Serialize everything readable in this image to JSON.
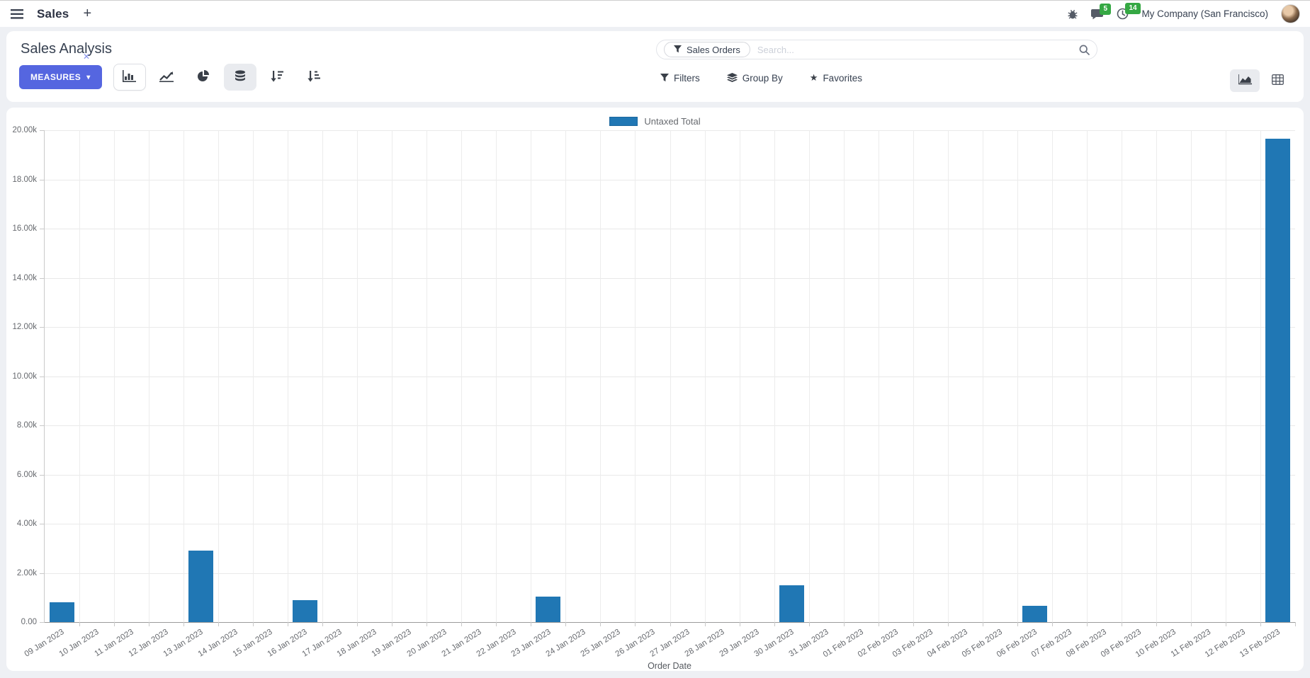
{
  "navbar": {
    "app_name": "Sales",
    "plus_label": "+",
    "messages_badge": "5",
    "activities_badge": "14",
    "company": "My Company (San Francisco)"
  },
  "control_panel": {
    "title": "Sales Analysis",
    "measures_label": "MEASURES",
    "measures_caret": "▾",
    "search": {
      "facet_label": "Sales Orders",
      "facet_remove": "✕",
      "placeholder": "Search..."
    },
    "filters_label": "Filters",
    "group_by_label": "Group By",
    "favorites_label": "Favorites",
    "favorites_star": "★"
  },
  "chart_data": {
    "type": "bar",
    "title": "",
    "legend_position": "top",
    "series_color": "#2077b4",
    "xlabel": "Order Date",
    "ylabel": "",
    "ylim": [
      0,
      20000
    ],
    "grid": true,
    "y_ticks": [
      {
        "value": 0,
        "label": "0.00"
      },
      {
        "value": 2000,
        "label": "2.00k"
      },
      {
        "value": 4000,
        "label": "4.00k"
      },
      {
        "value": 6000,
        "label": "6.00k"
      },
      {
        "value": 8000,
        "label": "8.00k"
      },
      {
        "value": 10000,
        "label": "10.00k"
      },
      {
        "value": 12000,
        "label": "12.00k"
      },
      {
        "value": 14000,
        "label": "14.00k"
      },
      {
        "value": 16000,
        "label": "16.00k"
      },
      {
        "value": 18000,
        "label": "18.00k"
      },
      {
        "value": 20000,
        "label": "20.00k"
      }
    ],
    "categories": [
      "09 Jan 2023",
      "10 Jan 2023",
      "11 Jan 2023",
      "12 Jan 2023",
      "13 Jan 2023",
      "14 Jan 2023",
      "15 Jan 2023",
      "16 Jan 2023",
      "17 Jan 2023",
      "18 Jan 2023",
      "19 Jan 2023",
      "20 Jan 2023",
      "21 Jan 2023",
      "22 Jan 2023",
      "23 Jan 2023",
      "24 Jan 2023",
      "25 Jan 2023",
      "26 Jan 2023",
      "27 Jan 2023",
      "28 Jan 2023",
      "29 Jan 2023",
      "30 Jan 2023",
      "31 Jan 2023",
      "01 Feb 2023",
      "02 Feb 2023",
      "03 Feb 2023",
      "04 Feb 2023",
      "05 Feb 2023",
      "06 Feb 2023",
      "07 Feb 2023",
      "08 Feb 2023",
      "09 Feb 2023",
      "10 Feb 2023",
      "11 Feb 2023",
      "12 Feb 2023",
      "13 Feb 2023"
    ],
    "series": [
      {
        "name": "Untaxed Total",
        "values": [
          800,
          0,
          0,
          0,
          2900,
          0,
          0,
          900,
          0,
          0,
          0,
          0,
          0,
          0,
          1050,
          0,
          0,
          0,
          0,
          0,
          0,
          1500,
          0,
          0,
          0,
          0,
          0,
          0,
          650,
          0,
          0,
          0,
          0,
          0,
          0,
          19650
        ]
      }
    ]
  },
  "colors": {
    "accent": "#5566e0",
    "bar": "#2077b4",
    "badge_green": "#35a843"
  }
}
